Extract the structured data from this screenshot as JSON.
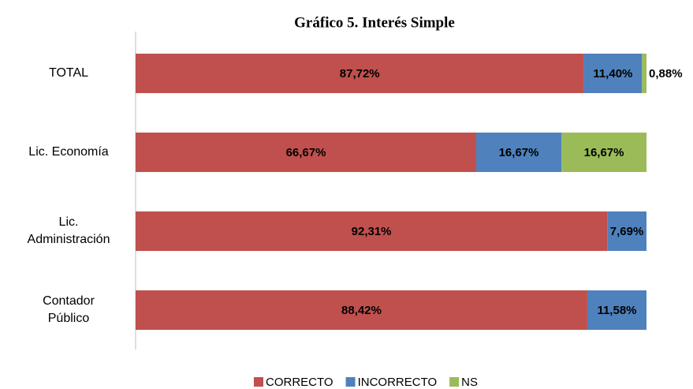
{
  "chart_data": {
    "type": "stacked_barh",
    "title": "Gráfico 5. Interés Simple",
    "categories": [
      "TOTAL",
      "Lic. Economía",
      "Lic. Administración",
      "Contador Público"
    ],
    "series": [
      {
        "name": "CORRECTO",
        "color": "#c0504d",
        "values": [
          87.72,
          66.67,
          92.31,
          88.42
        ],
        "value_labels": [
          "87,72%",
          "66,67%",
          "92,31%",
          "88,42%"
        ]
      },
      {
        "name": "INCORRECTO",
        "color": "#4f81bd",
        "values": [
          11.4,
          16.67,
          7.69,
          11.58
        ],
        "value_labels": [
          "11,40%",
          "16,67%",
          "7,69%",
          "11,58%"
        ]
      },
      {
        "name": "NS",
        "color": "#9bbb59",
        "values": [
          0.88,
          16.67,
          0,
          0
        ],
        "value_labels": [
          "0,88%",
          "16,67%",
          null,
          null
        ]
      }
    ],
    "xlim": [
      0,
      100
    ],
    "legend": "bottom"
  }
}
